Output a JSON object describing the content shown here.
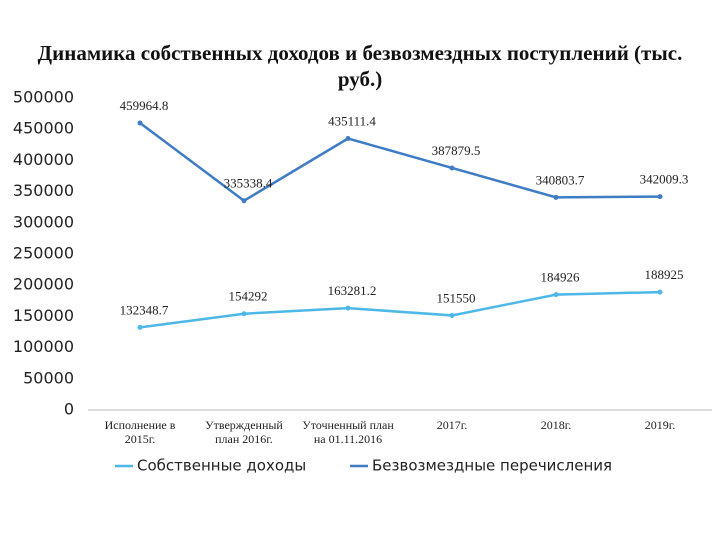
{
  "chart_data": {
    "type": "line",
    "title": "Динамика собственных доходов и безвозмездных поступлений (тыс. руб.)",
    "categories": [
      "Исполнение в 2015г.",
      "Утвержденный план 2016г.",
      "Уточненный план на 01.11.2016",
      "2017г.",
      "2018г.",
      "2019г."
    ],
    "series": [
      {
        "name": "Собственные доходы",
        "color": "#4db8e8",
        "values": [
          132348.7,
          154292,
          163281.2,
          151550,
          184926,
          188925
        ]
      },
      {
        "name": "Безвозмездные перечисления",
        "color": "#3f7cc4",
        "values": [
          459964.8,
          335338.4,
          435111.4,
          387879.5,
          340803.7,
          342009.3
        ]
      }
    ],
    "ylim": [
      0,
      500000
    ],
    "yticks": [
      0,
      50000,
      100000,
      150000,
      200000,
      250000,
      300000,
      350000,
      400000,
      450000,
      500000
    ],
    "grid": false
  }
}
